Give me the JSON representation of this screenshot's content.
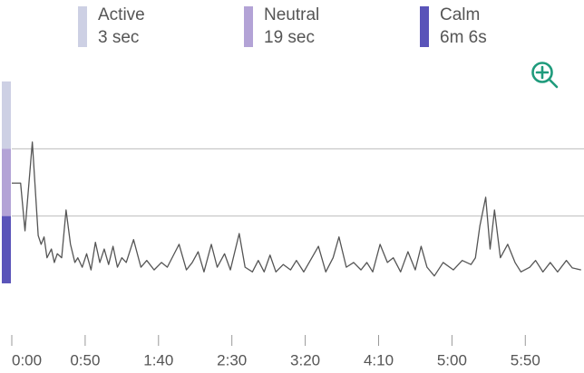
{
  "chart_data": {
    "type": "line",
    "legend": [
      {
        "name": "Active",
        "duration": "3 sec",
        "color": "#cdd0e4",
        "range": [
          2,
          3
        ]
      },
      {
        "name": "Neutral",
        "duration": "19 sec",
        "color": "#b3a3d6",
        "range": [
          1,
          2
        ]
      },
      {
        "name": "Calm",
        "duration": "6m 6s",
        "color": "#5a54b9",
        "range": [
          0,
          1
        ]
      }
    ],
    "x": [
      0,
      6,
      9,
      14,
      18,
      20,
      22,
      24,
      27,
      29,
      31,
      34,
      37,
      40,
      43,
      45,
      48,
      51,
      54,
      57,
      60,
      63,
      66,
      69,
      72,
      75,
      78,
      83,
      88,
      92,
      97,
      102,
      106,
      114,
      119,
      123,
      127,
      131,
      136,
      140,
      145,
      149,
      155,
      159,
      164,
      168,
      172,
      176,
      180,
      185,
      190,
      194,
      199,
      209,
      214,
      219,
      223,
      228,
      233,
      238,
      242,
      246,
      251,
      256,
      260,
      265,
      270,
      275,
      279,
      283,
      288,
      294,
      301,
      307,
      313,
      316,
      319,
      323,
      326,
      329,
      333,
      338,
      343,
      347,
      353,
      357,
      362,
      367,
      372,
      378,
      382,
      388
    ],
    "series": [
      {
        "color": "#555555",
        "values": [
          1.49,
          1.49,
          0.78,
          2.1,
          0.71,
          0.58,
          0.69,
          0.38,
          0.51,
          0.31,
          0.44,
          0.38,
          1.09,
          0.58,
          0.31,
          0.38,
          0.24,
          0.44,
          0.2,
          0.61,
          0.31,
          0.51,
          0.28,
          0.55,
          0.24,
          0.38,
          0.31,
          0.65,
          0.24,
          0.34,
          0.2,
          0.31,
          0.24,
          0.58,
          0.2,
          0.31,
          0.47,
          0.17,
          0.58,
          0.24,
          0.44,
          0.2,
          0.74,
          0.24,
          0.17,
          0.34,
          0.17,
          0.42,
          0.17,
          0.28,
          0.2,
          0.34,
          0.17,
          0.55,
          0.17,
          0.38,
          0.69,
          0.24,
          0.31,
          0.2,
          0.31,
          0.17,
          0.58,
          0.31,
          0.38,
          0.17,
          0.47,
          0.2,
          0.55,
          0.24,
          0.11,
          0.31,
          0.2,
          0.34,
          0.28,
          0.38,
          0.85,
          1.28,
          0.51,
          1.09,
          0.38,
          0.58,
          0.31,
          0.17,
          0.24,
          0.34,
          0.17,
          0.31,
          0.17,
          0.34,
          0.23,
          0.2
        ]
      }
    ],
    "xlim": [
      0,
      390
    ],
    "ylim": [
      -0.7,
      3
    ],
    "xticks": [
      {
        "value": 0,
        "label": "0:00"
      },
      {
        "value": 50,
        "label": "0:50"
      },
      {
        "value": 100,
        "label": "1:40"
      },
      {
        "value": 150,
        "label": "2:30"
      },
      {
        "value": 200,
        "label": "3:20"
      },
      {
        "value": 250,
        "label": "4:10"
      },
      {
        "value": 300,
        "label": "5:00"
      },
      {
        "value": 350,
        "label": "5:50"
      }
    ]
  }
}
